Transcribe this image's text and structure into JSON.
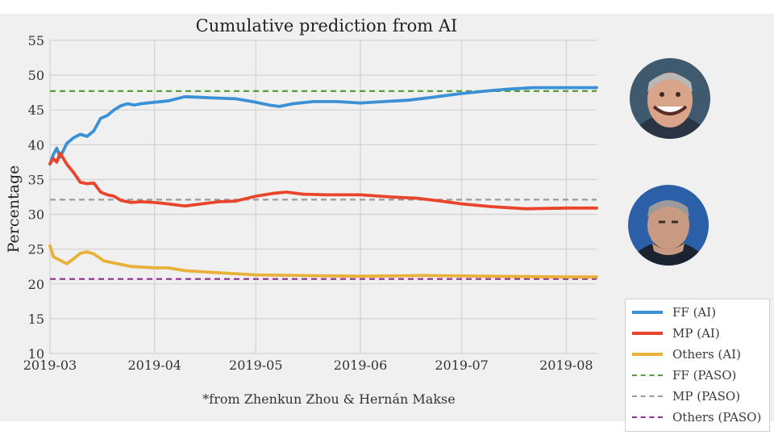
{
  "colors": {
    "ff": "#3a91d6",
    "mp": "#e8452c",
    "others": "#e9b03a",
    "ff_paso": "#5a9c3c",
    "mp_paso": "#9a9a9a",
    "others_paso": "#8b2f8f",
    "grid": "#d4d4d4",
    "background": "#f0f0f0"
  },
  "photos": {
    "ff_icon": "person-photo-ff",
    "mp_icon": "person-photo-mp"
  },
  "chart_data": {
    "type": "line",
    "title": "Cumulative prediction from AI",
    "xlabel": "",
    "ylabel": "Percentage",
    "footnote": "*from Zhenkun Zhou & Hernán Makse",
    "xlim": [
      "2019-03-01",
      "2019-08-10"
    ],
    "ylim": [
      10,
      55
    ],
    "yticks": [
      10,
      15,
      20,
      25,
      30,
      35,
      40,
      45,
      50,
      55
    ],
    "xticks": [
      {
        "date": "2019-03-01",
        "label": "2019-03"
      },
      {
        "date": "2019-04-01",
        "label": "2019-04"
      },
      {
        "date": "2019-05-01",
        "label": "2019-05"
      },
      {
        "date": "2019-06-01",
        "label": "2019-06"
      },
      {
        "date": "2019-07-01",
        "label": "2019-07"
      },
      {
        "date": "2019-08-01",
        "label": "2019-08"
      }
    ],
    "grid": true,
    "legend_position": "bottom-right",
    "series": [
      {
        "name": "FF (AI)",
        "key": "ff",
        "style": "solid",
        "x": [
          "2019-03-01",
          "2019-03-02",
          "2019-03-03",
          "2019-03-04",
          "2019-03-06",
          "2019-03-08",
          "2019-03-10",
          "2019-03-12",
          "2019-03-14",
          "2019-03-16",
          "2019-03-18",
          "2019-03-20",
          "2019-03-22",
          "2019-03-24",
          "2019-03-26",
          "2019-03-28",
          "2019-04-01",
          "2019-04-05",
          "2019-04-10",
          "2019-04-15",
          "2019-04-20",
          "2019-04-25",
          "2019-04-30",
          "2019-05-05",
          "2019-05-08",
          "2019-05-12",
          "2019-05-18",
          "2019-05-25",
          "2019-06-01",
          "2019-06-08",
          "2019-06-15",
          "2019-06-22",
          "2019-06-30",
          "2019-07-08",
          "2019-07-15",
          "2019-07-22",
          "2019-08-01",
          "2019-08-10"
        ],
        "y": [
          37.2,
          38.6,
          39.5,
          38.2,
          40.2,
          41.0,
          41.5,
          41.2,
          42.0,
          43.8,
          44.2,
          45.0,
          45.6,
          45.9,
          45.7,
          45.9,
          46.1,
          46.3,
          46.9,
          46.8,
          46.7,
          46.6,
          46.2,
          45.7,
          45.5,
          45.9,
          46.2,
          46.2,
          46.0,
          46.2,
          46.4,
          46.8,
          47.3,
          47.7,
          48.0,
          48.2,
          48.2,
          48.2
        ]
      },
      {
        "name": "MP (AI)",
        "key": "mp",
        "style": "solid",
        "x": [
          "2019-03-01",
          "2019-03-02",
          "2019-03-03",
          "2019-03-04",
          "2019-03-06",
          "2019-03-08",
          "2019-03-10",
          "2019-03-12",
          "2019-03-14",
          "2019-03-16",
          "2019-03-18",
          "2019-03-20",
          "2019-03-22",
          "2019-03-25",
          "2019-03-28",
          "2019-04-01",
          "2019-04-05",
          "2019-04-10",
          "2019-04-15",
          "2019-04-20",
          "2019-04-25",
          "2019-05-01",
          "2019-05-06",
          "2019-05-10",
          "2019-05-15",
          "2019-05-22",
          "2019-06-01",
          "2019-06-10",
          "2019-06-18",
          "2019-06-25",
          "2019-07-01",
          "2019-07-10",
          "2019-07-20",
          "2019-08-01",
          "2019-08-10"
        ],
        "y": [
          37.3,
          38.0,
          37.5,
          38.8,
          37.2,
          36.0,
          34.6,
          34.4,
          34.5,
          33.2,
          32.8,
          32.6,
          32.0,
          31.7,
          31.8,
          31.7,
          31.5,
          31.2,
          31.5,
          31.8,
          31.9,
          32.6,
          33.0,
          33.2,
          32.9,
          32.8,
          32.8,
          32.5,
          32.3,
          31.9,
          31.5,
          31.1,
          30.8,
          30.9,
          30.9
        ]
      },
      {
        "name": "Others (AI)",
        "key": "others",
        "style": "solid",
        "x": [
          "2019-03-01",
          "2019-03-02",
          "2019-03-04",
          "2019-03-06",
          "2019-03-08",
          "2019-03-10",
          "2019-03-12",
          "2019-03-14",
          "2019-03-17",
          "2019-03-20",
          "2019-03-25",
          "2019-04-01",
          "2019-04-05",
          "2019-04-10",
          "2019-04-20",
          "2019-05-01",
          "2019-05-15",
          "2019-06-01",
          "2019-06-20",
          "2019-07-10",
          "2019-08-01",
          "2019-08-10"
        ],
        "y": [
          25.5,
          23.9,
          23.4,
          22.9,
          23.6,
          24.4,
          24.6,
          24.3,
          23.3,
          23.0,
          22.5,
          22.3,
          22.3,
          21.9,
          21.6,
          21.3,
          21.2,
          21.1,
          21.2,
          21.1,
          21.0,
          21.0
        ]
      },
      {
        "name": "FF (PASO)",
        "key": "ff_paso",
        "style": "dashed",
        "x": [
          "2019-03-01",
          "2019-08-10"
        ],
        "y": [
          47.7,
          47.7
        ]
      },
      {
        "name": "MP (PASO)",
        "key": "mp_paso",
        "style": "dashed",
        "x": [
          "2019-03-01",
          "2019-08-10"
        ],
        "y": [
          32.1,
          32.1
        ]
      },
      {
        "name": "Others (PASO)",
        "key": "others_paso",
        "style": "dashed",
        "x": [
          "2019-03-01",
          "2019-08-10"
        ],
        "y": [
          20.7,
          20.7
        ]
      }
    ]
  }
}
